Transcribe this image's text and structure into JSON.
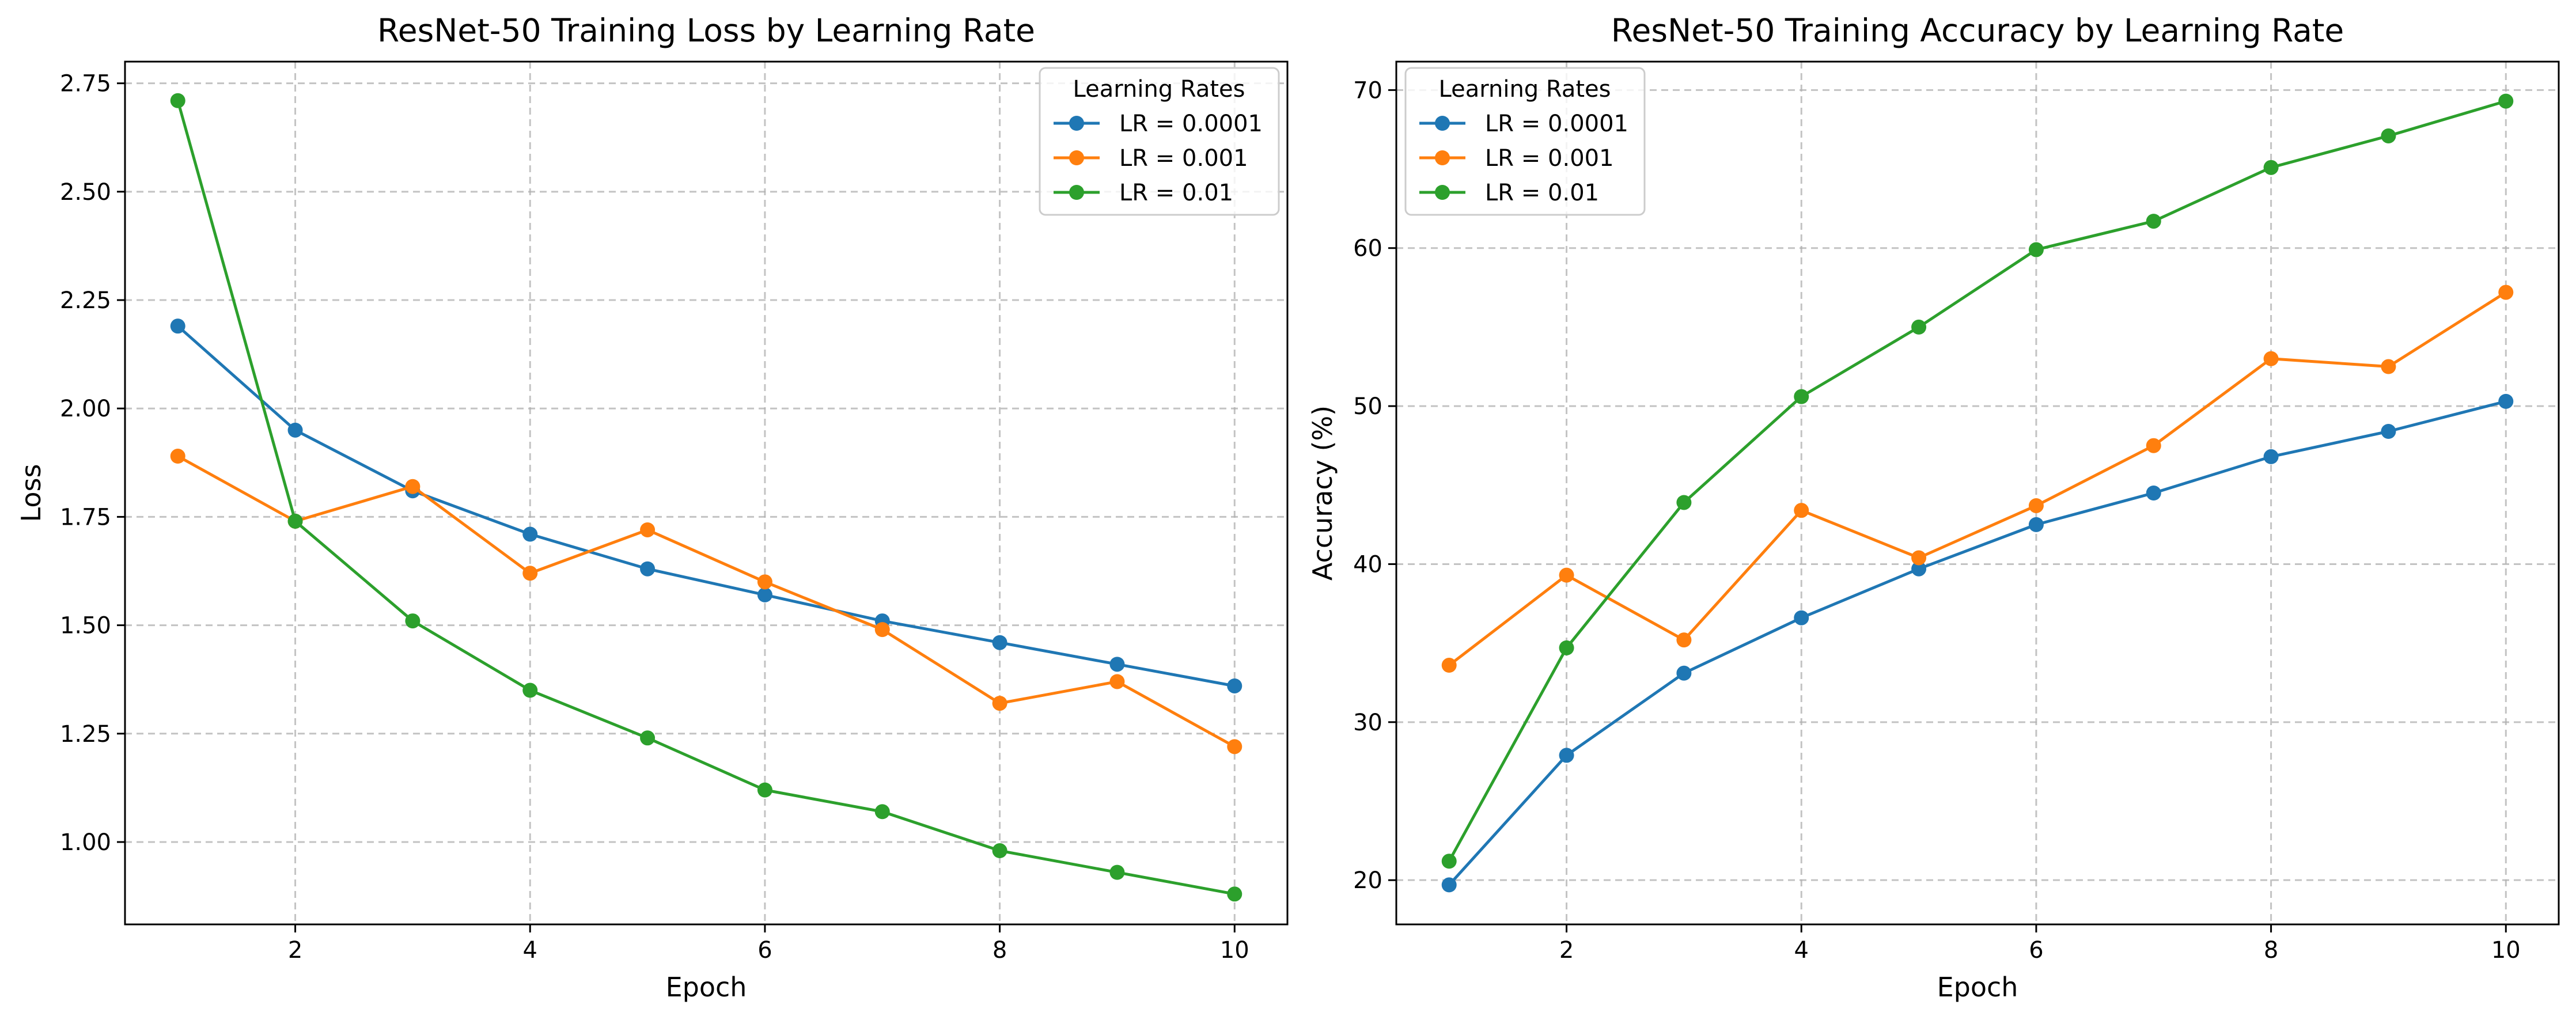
{
  "chart_data": [
    {
      "type": "line",
      "title": "ResNet-50 Training Loss by Learning Rate",
      "xlabel": "Epoch",
      "ylabel": "Loss",
      "xlim": [
        0.55,
        10.45
      ],
      "ylim": [
        0.81,
        2.8
      ],
      "xticks": [
        2,
        4,
        6,
        8,
        10
      ],
      "xtick_labels": [
        "2",
        "4",
        "6",
        "8",
        "10"
      ],
      "yticks": [
        1.0,
        1.25,
        1.5,
        1.75,
        2.0,
        2.25,
        2.5,
        2.75
      ],
      "ytick_labels": [
        "1.00",
        "1.25",
        "1.50",
        "1.75",
        "2.00",
        "2.25",
        "2.50",
        "2.75"
      ],
      "grid": true,
      "legend_title": "Learning Rates",
      "legend_position": "top-right",
      "x": [
        1,
        2,
        3,
        4,
        5,
        6,
        7,
        8,
        9,
        10
      ],
      "series": [
        {
          "name": "LR = 0.0001",
          "color": "#1f77b4",
          "values": [
            2.19,
            1.95,
            1.81,
            1.71,
            1.63,
            1.57,
            1.51,
            1.46,
            1.41,
            1.36
          ]
        },
        {
          "name": "LR = 0.001",
          "color": "#ff7f0e",
          "values": [
            1.89,
            1.74,
            1.82,
            1.62,
            1.72,
            1.6,
            1.49,
            1.32,
            1.37,
            1.22
          ]
        },
        {
          "name": "LR = 0.01",
          "color": "#2ca02c",
          "values": [
            2.71,
            1.74,
            1.51,
            1.35,
            1.24,
            1.12,
            1.07,
            0.98,
            0.93,
            0.88
          ]
        }
      ]
    },
    {
      "type": "line",
      "title": "ResNet-50 Training Accuracy by Learning Rate",
      "xlabel": "Epoch",
      "ylabel": "Accuracy (%)",
      "xlim": [
        0.55,
        10.45
      ],
      "ylim": [
        17.2,
        71.8
      ],
      "xticks": [
        2,
        4,
        6,
        8,
        10
      ],
      "xtick_labels": [
        "2",
        "4",
        "6",
        "8",
        "10"
      ],
      "yticks": [
        20,
        30,
        40,
        50,
        60,
        70
      ],
      "ytick_labels": [
        "20",
        "30",
        "40",
        "50",
        "60",
        "70"
      ],
      "grid": true,
      "legend_title": "Learning Rates",
      "legend_position": "top-left",
      "x": [
        1,
        2,
        3,
        4,
        5,
        6,
        7,
        8,
        9,
        10
      ],
      "series": [
        {
          "name": "LR = 0.0001",
          "color": "#1f77b4",
          "values": [
            19.7,
            27.9,
            33.1,
            36.6,
            39.7,
            42.5,
            44.5,
            46.8,
            48.4,
            50.3
          ]
        },
        {
          "name": "LR = 0.001",
          "color": "#ff7f0e",
          "values": [
            33.6,
            39.3,
            35.2,
            43.4,
            40.4,
            43.7,
            47.5,
            53.0,
            52.5,
            57.2
          ]
        },
        {
          "name": "LR = 0.01",
          "color": "#2ca02c",
          "values": [
            21.2,
            34.7,
            43.9,
            50.6,
            55.0,
            59.9,
            61.7,
            65.1,
            67.1,
            69.3
          ]
        }
      ]
    }
  ]
}
